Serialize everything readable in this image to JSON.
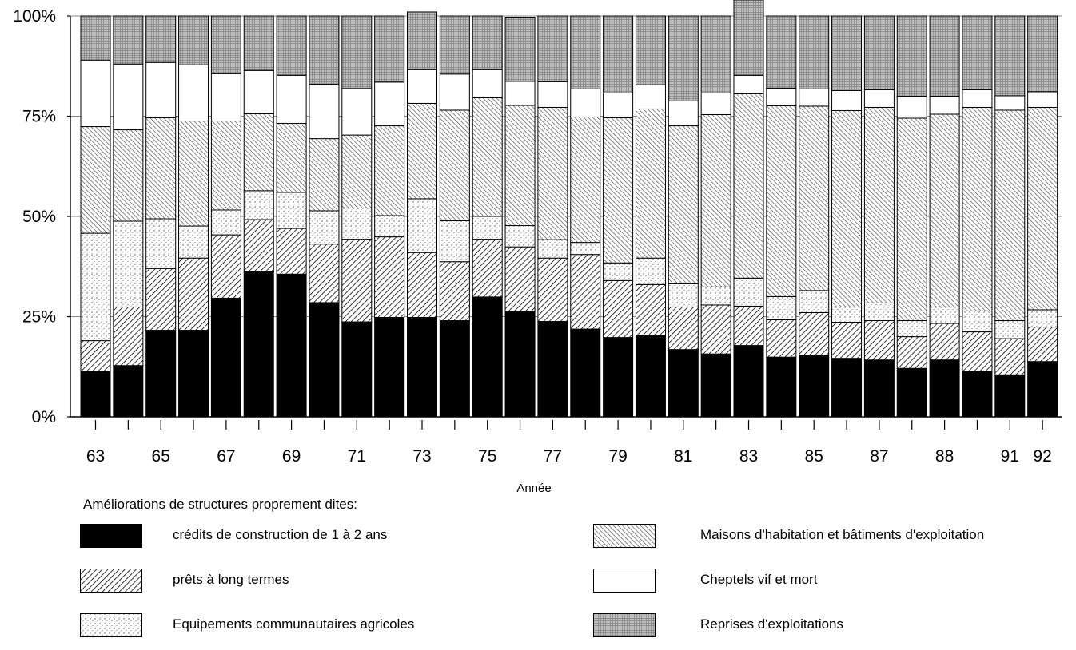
{
  "chart_data": {
    "type": "bar",
    "stacked": true,
    "percent_stacked": true,
    "xlabel": "Année",
    "ylabel": "",
    "ylim": [
      0,
      100
    ],
    "y_ticks": [
      "0%",
      "25%",
      "50%",
      "75%",
      "100%"
    ],
    "x_tick_labels": [
      "63",
      "65",
      "67",
      "69",
      "71",
      "73",
      "75",
      "77",
      "79",
      "81",
      "83",
      "85",
      "87",
      "88",
      "91",
      "92"
    ],
    "x_tick_label_bar_index": [
      0,
      2,
      4,
      6,
      8,
      10,
      12,
      14,
      16,
      18,
      20,
      22,
      24,
      26,
      28,
      29
    ],
    "bar_count": 30,
    "grid": "horizontal",
    "legend_title": "Améliorations de structures proprement dites:",
    "legend_placement": "bottom",
    "series": [
      {
        "name": "crédits de construction de 1 à 2 ans",
        "pattern": "solid",
        "values": [
          11.4,
          12.8,
          21.6,
          21.6,
          29.6,
          36.2,
          35.6,
          28.5,
          23.7,
          24.8,
          24.8,
          24.0,
          29.9,
          26.2,
          23.8,
          21.9,
          19.8,
          20.3,
          16.8,
          15.7,
          17.8,
          14.9,
          15.4,
          14.6,
          14.2,
          12.1,
          14.2,
          11.3,
          10.5,
          13.8
        ]
      },
      {
        "name": "prêts à long termes",
        "pattern": "hatch-dense",
        "values": [
          7.6,
          14.6,
          15.4,
          18.0,
          15.8,
          13.0,
          11.4,
          14.6,
          20.6,
          20.1,
          16.2,
          14.7,
          14.4,
          16.2,
          15.8,
          18.6,
          14.2,
          12.7,
          10.6,
          12.2,
          9.8,
          9.3,
          10.6,
          9.0,
          9.8,
          7.9,
          9.1,
          9.9,
          9.0,
          8.6
        ]
      },
      {
        "name": "Equipements communautaires agricoles",
        "pattern": "dots",
        "values": [
          26.8,
          21.4,
          12.4,
          8.0,
          6.2,
          7.2,
          9.0,
          8.3,
          7.8,
          5.3,
          13.4,
          10.2,
          5.7,
          5.3,
          4.6,
          3.0,
          4.4,
          6.6,
          5.8,
          4.5,
          7.0,
          5.8,
          5.5,
          3.8,
          4.4,
          4.0,
          4.1,
          5.2,
          4.5,
          4.3
        ]
      },
      {
        "name": "Maisons d'habitation et bâtiments d'exploitation",
        "pattern": "hatch-back",
        "values": [
          26.6,
          22.8,
          25.2,
          26.2,
          22.2,
          19.2,
          17.2,
          18.0,
          18.2,
          22.4,
          23.8,
          27.6,
          29.6,
          30.0,
          33.0,
          31.3,
          36.2,
          37.2,
          39.4,
          43.0,
          46.0,
          47.6,
          46.0,
          49.0,
          48.8,
          50.5,
          48.1,
          50.8,
          52.5,
          50.5
        ]
      },
      {
        "name": "Cheptels vif et mort",
        "pattern": "blank",
        "values": [
          16.6,
          16.4,
          13.8,
          14.0,
          11.8,
          10.8,
          12.0,
          13.6,
          11.6,
          10.9,
          8.4,
          9.0,
          7.0,
          6.0,
          6.4,
          7.0,
          6.2,
          6.0,
          6.2,
          5.4,
          4.6,
          4.4,
          4.3,
          5.0,
          4.4,
          5.5,
          4.5,
          4.4,
          3.6,
          3.9
        ]
      },
      {
        "name": "Reprises d'exploitations",
        "pattern": "grid",
        "values": [
          11.0,
          12.0,
          11.6,
          12.2,
          14.4,
          13.6,
          14.8,
          17.0,
          18.1,
          16.5,
          14.4,
          14.5,
          13.4,
          16.0,
          16.4,
          18.2,
          19.2,
          17.2,
          21.2,
          19.2,
          18.8,
          18.0,
          18.2,
          18.6,
          18.4,
          20.0,
          20.0,
          18.4,
          19.9,
          18.9
        ]
      }
    ]
  }
}
